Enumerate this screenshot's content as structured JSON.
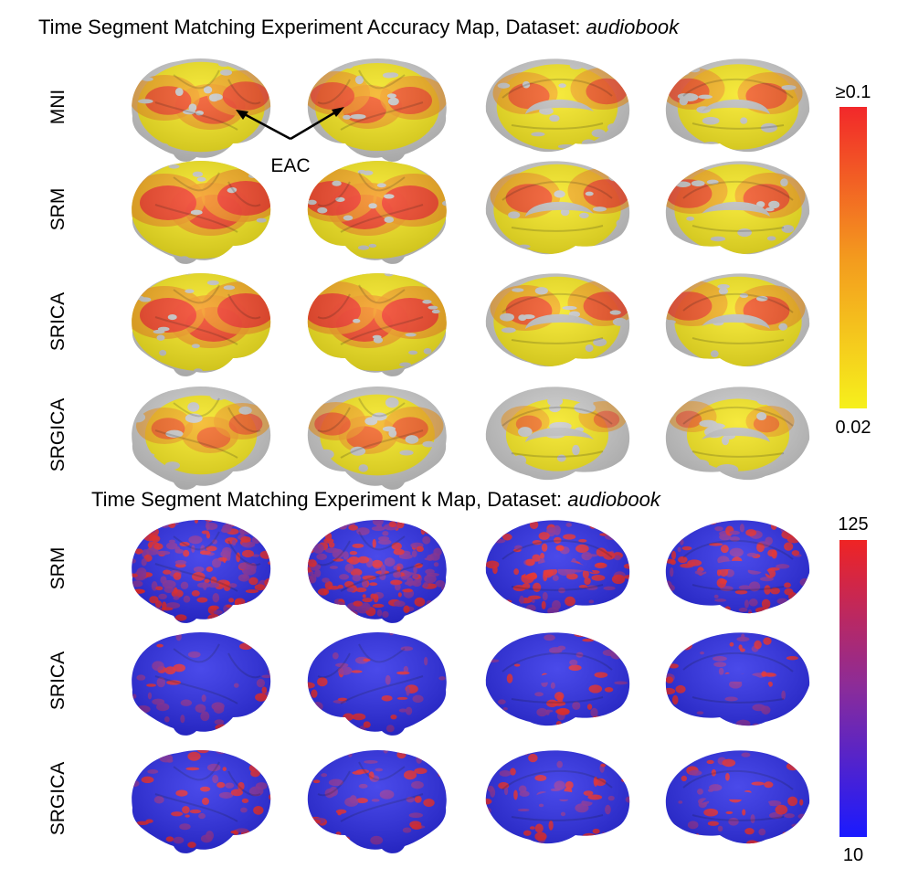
{
  "panels": [
    {
      "title_prefix": "Time Segment Matching Experiment Accuracy Map, Dataset: ",
      "title_dataset": "audiobook",
      "rows": [
        {
          "label": "MNI",
          "intensity": [
            0.55,
            0.5,
            0.45,
            0.45
          ]
        },
        {
          "label": "SRM",
          "intensity": [
            0.75,
            0.75,
            0.55,
            0.55
          ]
        },
        {
          "label": "SRICA",
          "intensity": [
            0.75,
            0.75,
            0.55,
            0.55
          ]
        },
        {
          "label": "SRGICA",
          "intensity": [
            0.3,
            0.35,
            0.15,
            0.15
          ]
        }
      ],
      "colorbar": {
        "top_label": "≥0.1",
        "bottom_label": "0.02",
        "top_color": "#f2282a",
        "mid_color": "#f39a1e",
        "bottom_color": "#f6f01c"
      }
    },
    {
      "title_prefix": "Time Segment Matching Experiment k Map, Dataset: ",
      "title_dataset": "audiobook",
      "rows": [
        {
          "label": "SRM",
          "intensity": [
            0.6,
            0.6,
            0.35,
            0.35
          ]
        },
        {
          "label": "SRICA",
          "intensity": [
            0.08,
            0.08,
            0.1,
            0.1
          ]
        },
        {
          "label": "SRGICA",
          "intensity": [
            0.12,
            0.12,
            0.15,
            0.15
          ]
        }
      ],
      "colorbar": {
        "top_label": "125",
        "bottom_label": "10",
        "top_color": "#ef2424",
        "mid_color": "#8a2c9a",
        "bottom_color": "#1a1aff"
      }
    }
  ],
  "annotation": {
    "label": "EAC"
  },
  "brain_views": [
    "left-lateral",
    "right-lateral",
    "left-medial",
    "right-medial"
  ],
  "colors": {
    "cortex_gray": "#c9c9c9",
    "accuracy_base": "#f5e61c",
    "k_base": "#2a2ae6"
  }
}
